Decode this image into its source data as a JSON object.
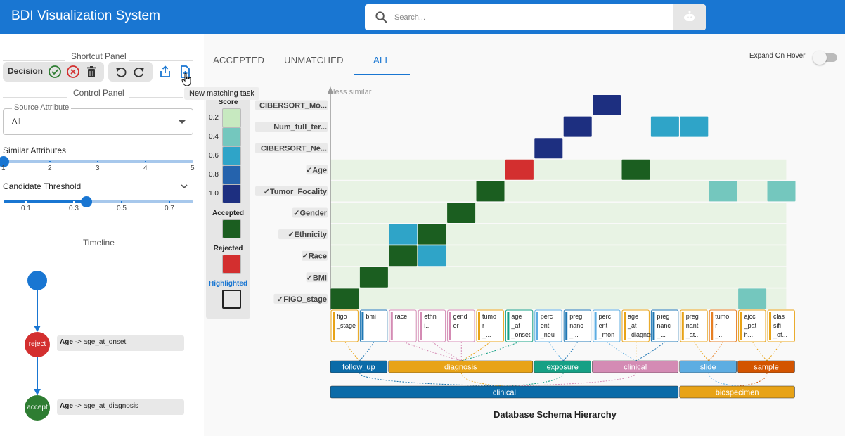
{
  "app": {
    "title": "BDI Visualization System"
  },
  "search": {
    "placeholder": "Search..."
  },
  "shortcut_panel": {
    "title": "Shortcut Panel",
    "decision_label": "Decision",
    "new_task_tooltip": "New matching task"
  },
  "control_panel": {
    "title": "Control Panel",
    "source_attribute": {
      "label": "Source Attribute",
      "value": "All"
    },
    "similar_attributes": {
      "label": "Similar Attributes",
      "ticks": [
        "1",
        "2",
        "3",
        "4",
        "5"
      ],
      "value": 1
    },
    "candidate_threshold": {
      "label": "Candidate Threshold",
      "ticks": [
        "0.1",
        "0.3",
        "0.5",
        "0.7"
      ],
      "value": 0.35
    }
  },
  "timeline": {
    "title": "Timeline",
    "events": [
      {
        "action": "reject",
        "source": "Age",
        "arrow": " -> ",
        "target": "age_at_onset",
        "color": "#d32f2f"
      },
      {
        "action": "accept",
        "source": "Age",
        "arrow": " -> ",
        "target": "age_at_diagnosis",
        "color": "#2e7d32"
      }
    ]
  },
  "tabs": [
    {
      "label": "ACCEPTED",
      "active": false
    },
    {
      "label": "UNMATCHED",
      "active": false
    },
    {
      "label": "ALL",
      "active": true
    }
  ],
  "expand_on_hover": {
    "label": "Expand On Hover",
    "enabled": false
  },
  "legend": {
    "score_title": "Score",
    "score_ticks": [
      "0.2",
      "0.4",
      "0.6",
      "0.8",
      "1.0"
    ],
    "score_colors": [
      "#c7e9c0",
      "#74c7be",
      "#2fa4c8",
      "#2563ad",
      "#1d2f80"
    ],
    "accepted_title": "Accepted",
    "accepted_color": "#1b5e20",
    "rejected_title": "Rejected",
    "rejected_color": "#d32f2f",
    "highlighted_title": "Highlighted",
    "highlighted_color": "#1976d2"
  },
  "chart_data": {
    "type": "heatmap",
    "axis_note": "less similar",
    "rows": [
      {
        "label": "CIBERSORT_Mo...",
        "checked": false
      },
      {
        "label": "Num_full_ter...",
        "checked": false
      },
      {
        "label": "CIBERSORT_Ne...",
        "checked": false
      },
      {
        "label": "Age",
        "checked": true
      },
      {
        "label": "Tumor_Focality",
        "checked": true
      },
      {
        "label": "Gender",
        "checked": true
      },
      {
        "label": "Ethnicity",
        "checked": true
      },
      {
        "label": "Race",
        "checked": true
      },
      {
        "label": "BMI",
        "checked": true
      },
      {
        "label": "FIGO_stage",
        "checked": true
      }
    ],
    "columns": [
      {
        "label": "figo\n_stage",
        "color": "#e8a317"
      },
      {
        "label": "bmi",
        "color": "#1f77b4"
      },
      {
        "label": "race",
        "color": "#d48bb4"
      },
      {
        "label": "ethn\ni...",
        "color": "#d48bb4"
      },
      {
        "label": "gend\ner",
        "color": "#d48bb4"
      },
      {
        "label": "tumo\nr\n_...",
        "color": "#e8a317"
      },
      {
        "label": "age\n_at\n_onset",
        "color": "#16a085"
      },
      {
        "label": "perc\nent\n_neu",
        "color": "#5dade2"
      },
      {
        "label": "preg\nnanc\n_...",
        "color": "#1f77b4"
      },
      {
        "label": "perc\nent\n_mon",
        "color": "#5dade2"
      },
      {
        "label": "age\n_at\n_diagnosis",
        "color": "#e8a317"
      },
      {
        "label": "preg\nnanc\n_...",
        "color": "#1f77b4"
      },
      {
        "label": "preg\nnant\n_at...",
        "color": "#e8a317"
      },
      {
        "label": "tumo\nr\n_...",
        "color": "#e67e22"
      },
      {
        "label": "ajcc\n_pat\nh...",
        "color": "#e8a317"
      },
      {
        "label": "clas\nsifi\n_of...",
        "color": "#e8a317"
      }
    ],
    "cells": [
      {
        "row": 0,
        "col": 9,
        "status": "score",
        "score": 0.9
      },
      {
        "row": 1,
        "col": 8,
        "status": "score",
        "score": 0.9
      },
      {
        "row": 1,
        "col": 11,
        "status": "score",
        "score": 0.6
      },
      {
        "row": 1,
        "col": 12,
        "status": "score",
        "score": 0.6
      },
      {
        "row": 2,
        "col": 7,
        "status": "score",
        "score": 0.9
      },
      {
        "row": 3,
        "col": 6,
        "status": "rejected"
      },
      {
        "row": 3,
        "col": 10,
        "status": "accepted"
      },
      {
        "row": 4,
        "col": 5,
        "status": "accepted"
      },
      {
        "row": 4,
        "col": 13,
        "status": "score",
        "score": 0.4
      },
      {
        "row": 4,
        "col": 15,
        "status": "score",
        "score": 0.4
      },
      {
        "row": 5,
        "col": 4,
        "status": "accepted"
      },
      {
        "row": 6,
        "col": 2,
        "status": "score",
        "score": 0.6
      },
      {
        "row": 6,
        "col": 3,
        "status": "accepted"
      },
      {
        "row": 7,
        "col": 2,
        "status": "accepted"
      },
      {
        "row": 7,
        "col": 3,
        "status": "score",
        "score": 0.6
      },
      {
        "row": 8,
        "col": 1,
        "status": "accepted"
      },
      {
        "row": 9,
        "col": 0,
        "status": "accepted"
      },
      {
        "row": 9,
        "col": 14,
        "status": "score",
        "score": 0.4
      }
    ],
    "categories": [
      {
        "label": "follow_up",
        "color": "#0b6ba8",
        "span": [
          0,
          1
        ]
      },
      {
        "label": "diagnosis",
        "color": "#e8a317",
        "span": [
          2,
          6
        ]
      },
      {
        "label": "exposure",
        "color": "#16a085",
        "span": [
          7,
          8
        ]
      },
      {
        "label": "clinical",
        "color": "#d48bb4",
        "span": [
          9,
          11
        ]
      },
      {
        "label": "slide",
        "color": "#5dade2",
        "span": [
          12,
          13
        ]
      },
      {
        "label": "sample",
        "color": "#d35400",
        "span": [
          14,
          15
        ]
      }
    ],
    "groups": [
      {
        "label": "clinical",
        "color": "#0b6ba8",
        "span": [
          0,
          11
        ]
      },
      {
        "label": "biospecimen",
        "color": "#e8a317",
        "span": [
          12,
          15
        ]
      }
    ],
    "title": "Database Schema Hierarchy"
  }
}
